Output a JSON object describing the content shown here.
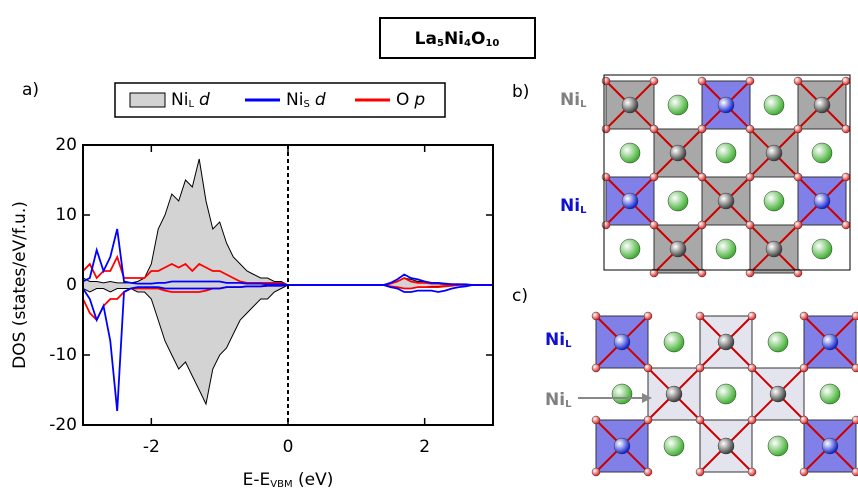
{
  "chart_data": {
    "type": "line",
    "title_parts": [
      "La",
      "5",
      "Ni",
      "4",
      "O",
      "10"
    ],
    "panel_label": "a)",
    "xlabel_parts": [
      "E-E",
      "VBM",
      " (eV)"
    ],
    "ylabel": "DOS (states/eV/f.u.)",
    "xlim": [
      -3,
      3
    ],
    "ylim": [
      -20,
      20
    ],
    "xticks": [
      -2,
      0,
      2
    ],
    "yticks": [
      -20,
      -10,
      0,
      10,
      20
    ],
    "x": [
      -3,
      -2.9,
      -2.8,
      -2.7,
      -2.6,
      -2.5,
      -2.4,
      -2.3,
      -2.2,
      -2.1,
      -2,
      -1.9,
      -1.8,
      -1.7,
      -1.6,
      -1.5,
      -1.4,
      -1.3,
      -1.2,
      -1.1,
      -1,
      -0.9,
      -0.8,
      -0.7,
      -0.6,
      -0.5,
      -0.4,
      -0.3,
      -0.2,
      -0.1,
      0,
      0.1,
      0.2,
      0.3,
      0.4,
      0.5,
      0.6,
      0.7,
      0.8,
      0.9,
      1,
      1.1,
      1.2,
      1.3,
      1.4,
      1.5,
      1.6,
      1.7,
      1.8,
      1.9,
      2,
      2.1,
      2.2,
      2.3,
      2.4,
      2.5,
      2.6,
      2.7,
      2.8,
      2.9,
      3
    ],
    "series": [
      {
        "name": "Ni",
        "subscript": "L",
        "orbital": "d",
        "color": "#000000",
        "fill": "#d3d3d3",
        "values": [
          1,
          0.5,
          0.5,
          0.3,
          0.5,
          0.3,
          0.3,
          0.3,
          0.5,
          1,
          3,
          8,
          10,
          13,
          12,
          15,
          14,
          18,
          12,
          8,
          9,
          6,
          4,
          3,
          2,
          1.5,
          1,
          1,
          0.5,
          0.5,
          0,
          0,
          0,
          0,
          0,
          0,
          0,
          0,
          0,
          0,
          0,
          0,
          0,
          0,
          0,
          0.2,
          0.5,
          1,
          0.8,
          0.5,
          0.5,
          0.3,
          0.2,
          0.1,
          0.1,
          0.1,
          0.1,
          0,
          0,
          0,
          0
        ],
        "values_down": [
          -0.5,
          -1,
          -0.5,
          -0.5,
          -1,
          -0.5,
          -0.5,
          -0.5,
          -1,
          -1,
          -2,
          -5,
          -8,
          -10,
          -12,
          -11,
          -13,
          -15,
          -17,
          -12,
          -10,
          -9,
          -7,
          -5,
          -4,
          -3,
          -2,
          -2,
          -1,
          -0.5,
          0,
          0,
          0,
          0,
          0,
          0,
          0,
          0,
          0,
          0,
          0,
          0,
          0,
          0,
          0,
          -0.2,
          -0.3,
          -0.5,
          -0.5,
          -0.3,
          -0.3,
          -0.2,
          -0.2,
          -0.1,
          -0.1,
          0,
          0,
          0,
          0,
          0,
          0
        ]
      },
      {
        "name": "Ni",
        "subscript": "S",
        "orbital": "d",
        "color": "#0000ff",
        "values": [
          0.5,
          1,
          5,
          2,
          4,
          8,
          0.5,
          0.3,
          0.2,
          0.2,
          0.2,
          0.3,
          0.3,
          0.5,
          0.5,
          0.5,
          0.5,
          0.5,
          0.5,
          0.5,
          0.5,
          0.3,
          0.3,
          0.3,
          0.2,
          0.2,
          0.2,
          0.1,
          0.1,
          0.1,
          0,
          0,
          0,
          0,
          0,
          0,
          0,
          0,
          0,
          0,
          0,
          0,
          0,
          0,
          0,
          0.3,
          0.8,
          1.5,
          1,
          0.8,
          0.5,
          0.3,
          0.3,
          0.2,
          0.1,
          0.1,
          0.1,
          0,
          0,
          0,
          0
        ],
        "values_down": [
          -0.5,
          -2,
          -5,
          -3,
          -8,
          -18,
          -1,
          -0.5,
          -0.3,
          -0.3,
          -0.3,
          -0.3,
          -0.5,
          -0.5,
          -0.5,
          -0.5,
          -0.5,
          -0.5,
          -0.5,
          -0.5,
          -0.5,
          -0.3,
          -0.3,
          -0.3,
          -0.2,
          -0.2,
          -0.2,
          -0.1,
          -0.1,
          -0.1,
          0,
          0,
          0,
          0,
          0,
          0,
          0,
          0,
          0,
          0,
          0,
          0,
          0,
          0,
          0,
          -0.3,
          -0.5,
          -1,
          -1,
          -0.8,
          -0.8,
          -0.8,
          -1,
          -0.8,
          -0.5,
          -0.3,
          -0.2,
          0,
          0,
          0,
          0
        ]
      },
      {
        "name": "O",
        "orbital": "p",
        "color": "#ff0000",
        "values": [
          2,
          3,
          1,
          2,
          2,
          4,
          1,
          1,
          1,
          1,
          2,
          2,
          2.5,
          3,
          2.5,
          3,
          2,
          3,
          2.5,
          2,
          2,
          1.5,
          1,
          0.5,
          0.3,
          0.3,
          0.3,
          0.3,
          0.3,
          0.3,
          0,
          0,
          0,
          0,
          0,
          0,
          0,
          0,
          0,
          0,
          0,
          0,
          0,
          0,
          0,
          0.2,
          0.5,
          1,
          0.5,
          0.3,
          0.3,
          0.2,
          0.2,
          0.1,
          0.1,
          0.1,
          0,
          0,
          0,
          0,
          0
        ],
        "values_down": [
          -2,
          -4,
          -5,
          -3,
          -2,
          -2,
          -1,
          -0.5,
          -0.5,
          -0.5,
          -0.5,
          -0.5,
          -0.8,
          -1,
          -1,
          -1,
          -1,
          -1,
          -0.8,
          -0.5,
          -0.5,
          -0.3,
          -0.3,
          -0.3,
          -0.2,
          -0.2,
          -0.2,
          -0.1,
          -0.1,
          -0.1,
          0,
          0,
          0,
          0,
          0,
          0,
          0,
          0,
          0,
          0,
          0,
          0,
          0,
          0,
          0,
          -0.2,
          -0.3,
          -0.5,
          -0.5,
          -0.3,
          -0.3,
          -0.3,
          -0.3,
          -0.2,
          -0.1,
          0,
          0,
          0,
          0,
          0,
          0
        ]
      }
    ]
  },
  "structures": [
    {
      "panel_label": "b)",
      "labels": [
        {
          "name": "Ni",
          "subscript": "L",
          "color": "#808080"
        },
        {
          "name": "Ni",
          "subscript": "L",
          "color": "#1010d0"
        }
      ]
    },
    {
      "panel_label": "c)",
      "labels": [
        {
          "name": "Ni",
          "subscript": "L",
          "color": "#1010d0"
        },
        {
          "name": "Ni",
          "subscript": "L",
          "color": "#808080"
        }
      ]
    }
  ]
}
